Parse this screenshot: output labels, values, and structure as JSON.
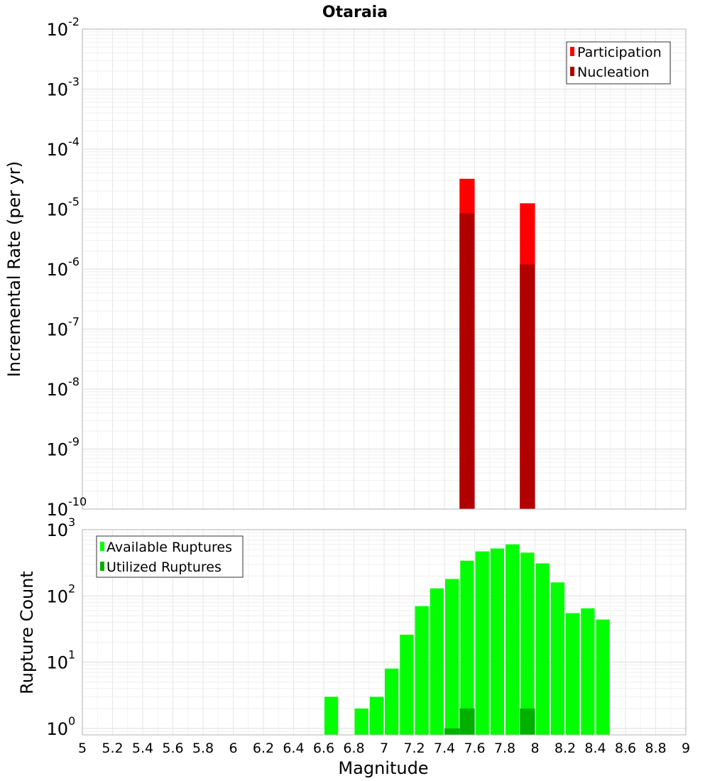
{
  "chart_data": [
    {
      "id": "top",
      "type": "bar",
      "title": "Otaraia",
      "ylabel": "Incremental Rate (per yr)",
      "yscale": "log",
      "ylim": [
        1e-10,
        0.01
      ],
      "xlim": [
        5,
        9
      ],
      "grid": true,
      "legend_position": "top-right",
      "bar_width": 0.1,
      "y_ticks": [
        {
          "base": "10",
          "exp": "-10",
          "value": 1e-10
        },
        {
          "base": "10",
          "exp": "-9",
          "value": 1e-09
        },
        {
          "base": "10",
          "exp": "-8",
          "value": 1e-08
        },
        {
          "base": "10",
          "exp": "-7",
          "value": 1e-07
        },
        {
          "base": "10",
          "exp": "-6",
          "value": 1e-06
        },
        {
          "base": "10",
          "exp": "-5",
          "value": 1e-05
        },
        {
          "base": "10",
          "exp": "-4",
          "value": 0.0001
        },
        {
          "base": "10",
          "exp": "-3",
          "value": 0.001
        },
        {
          "base": "10",
          "exp": "-2",
          "value": 0.01
        }
      ],
      "series": [
        {
          "name": "Participation",
          "color": "#ff0000",
          "x": [
            7.55,
            7.95
          ],
          "values": [
            3.2e-05,
            1.25e-05
          ]
        },
        {
          "name": "Nucleation",
          "color": "#b20000",
          "x": [
            7.55,
            7.95
          ],
          "values": [
            8.5e-06,
            1.2e-06
          ]
        }
      ]
    },
    {
      "id": "bottom",
      "type": "bar",
      "title": "",
      "xlabel": "Magnitude",
      "ylabel": "Rupture Count",
      "yscale": "log",
      "ylim": [
        0.8,
        1000
      ],
      "xlim": [
        5,
        9
      ],
      "grid": true,
      "legend_position": "top-left",
      "bar_width": 0.1,
      "y_ticks": [
        {
          "base": "10",
          "exp": "0",
          "value": 1
        },
        {
          "base": "10",
          "exp": "1",
          "value": 10
        },
        {
          "base": "10",
          "exp": "2",
          "value": 100
        },
        {
          "base": "10",
          "exp": "3",
          "value": 1000
        }
      ],
      "x_ticks": [
        "5",
        "5.2",
        "5.4",
        "5.6",
        "5.8",
        "6",
        "6.2",
        "6.4",
        "6.6",
        "6.8",
        "7",
        "7.2",
        "7.4",
        "7.6",
        "7.8",
        "8",
        "8.2",
        "8.4",
        "8.6",
        "8.8",
        "9"
      ],
      "series": [
        {
          "name": "Available Ruptures",
          "color": "#00ff00",
          "x": [
            6.65,
            6.85,
            6.95,
            7.05,
            7.15,
            7.25,
            7.35,
            7.45,
            7.55,
            7.65,
            7.75,
            7.85,
            7.95,
            8.05,
            8.15,
            8.25,
            8.35,
            8.45
          ],
          "values": [
            3,
            2,
            3,
            8,
            26,
            70,
            130,
            180,
            340,
            470,
            520,
            600,
            450,
            310,
            160,
            55,
            65,
            44
          ]
        },
        {
          "name": "Utilized Ruptures",
          "color": "#00b000",
          "x": [
            7.45,
            7.55,
            7.95
          ],
          "values": [
            1,
            2,
            2
          ]
        }
      ]
    }
  ]
}
